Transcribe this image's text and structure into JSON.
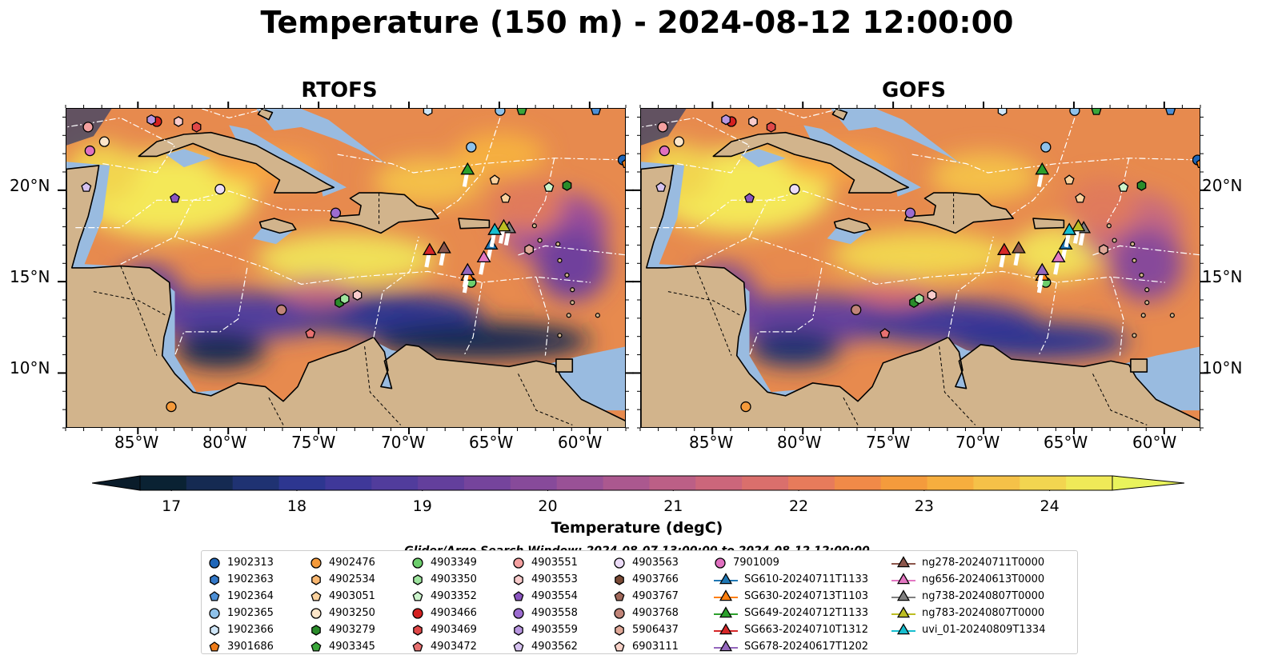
{
  "title": "Temperature (150 m) - 2024-08-12 12:00:00",
  "panels": [
    {
      "title": "RTOFS"
    },
    {
      "title": "GOFS"
    }
  ],
  "axes": {
    "lon_ticks": [
      "85°W",
      "80°W",
      "75°W",
      "70°W",
      "65°W",
      "60°W"
    ],
    "lat_ticks": [
      "20°N",
      "15°N",
      "10°N"
    ],
    "lon_range": [
      -89,
      -58
    ],
    "lat_range": [
      7,
      24.5
    ]
  },
  "colorbar": {
    "label": "Temperature (degC)",
    "ticks": [
      "17",
      "18",
      "19",
      "20",
      "21",
      "22",
      "23",
      "24"
    ],
    "range": [
      16.75,
      24.5
    ],
    "colors": [
      "#0a2233",
      "#152a52",
      "#1f3272",
      "#2d3690",
      "#3f3899",
      "#513c9c",
      "#633f9c",
      "#75449c",
      "#874a9a",
      "#995196",
      "#ab588f",
      "#bc5f86",
      "#cc667b",
      "#da6f6c",
      "#e77b5b",
      "#f08a48",
      "#f49b3c",
      "#f6ae3e",
      "#f5c148",
      "#f2d550",
      "#efe958"
    ],
    "extend_low": "#0a1c2a",
    "extend_high": "#e9f35c"
  },
  "search_window": "Glider/Argo Search Window: 2024-08-07 13:00:00 to 2024-08-12 12:00:00",
  "legend": [
    {
      "label": "1902313",
      "marker": "circle",
      "color": "#1f66b8"
    },
    {
      "label": "1902363",
      "marker": "hexagon",
      "color": "#3378c8"
    },
    {
      "label": "1902364",
      "marker": "pentagon",
      "color": "#4c8fd6"
    },
    {
      "label": "1902365",
      "marker": "circle",
      "color": "#8fc2ea"
    },
    {
      "label": "1902366",
      "marker": "hexagon",
      "color": "#cfe6f8"
    },
    {
      "label": "3901686",
      "marker": "pentagon",
      "color": "#f07d1a"
    },
    {
      "label": "4902476",
      "marker": "circle",
      "color": "#f59a3a"
    },
    {
      "label": "4902534",
      "marker": "hexagon",
      "color": "#f9b770"
    },
    {
      "label": "4903051",
      "marker": "pentagon",
      "color": "#fbd29e"
    },
    {
      "label": "4903250",
      "marker": "circle",
      "color": "#fde6c9"
    },
    {
      "label": "4903279",
      "marker": "hexagon",
      "color": "#2a8c2a"
    },
    {
      "label": "4903345",
      "marker": "pentagon",
      "color": "#3aa63a"
    },
    {
      "label": "4903349",
      "marker": "circle",
      "color": "#6cce6c"
    },
    {
      "label": "4903350",
      "marker": "hexagon",
      "color": "#9ee49e"
    },
    {
      "label": "4903352",
      "marker": "pentagon",
      "color": "#ccf4cc"
    },
    {
      "label": "4903466",
      "marker": "circle",
      "color": "#d42020"
    },
    {
      "label": "4903469",
      "marker": "hexagon",
      "color": "#e04848"
    },
    {
      "label": "4903472",
      "marker": "pentagon",
      "color": "#e87070"
    },
    {
      "label": "4903551",
      "marker": "circle",
      "color": "#f4a0a0"
    },
    {
      "label": "4903553",
      "marker": "hexagon",
      "color": "#f9cccc"
    },
    {
      "label": "4903554",
      "marker": "pentagon",
      "color": "#8a55c0"
    },
    {
      "label": "4903558",
      "marker": "circle",
      "color": "#9c6cd0"
    },
    {
      "label": "4903559",
      "marker": "hexagon",
      "color": "#b896e0"
    },
    {
      "label": "4903562",
      "marker": "pentagon",
      "color": "#d6c2f0"
    },
    {
      "label": "4903563",
      "marker": "circle",
      "color": "#ecdcf8"
    },
    {
      "label": "4903766",
      "marker": "hexagon",
      "color": "#7a4a36"
    },
    {
      "label": "4903767",
      "marker": "pentagon",
      "color": "#a0685a"
    },
    {
      "label": "4903768",
      "marker": "circle",
      "color": "#c08478"
    },
    {
      "label": "5906437",
      "marker": "hexagon",
      "color": "#e0a898"
    },
    {
      "label": "6903111",
      "marker": "pentagon",
      "color": "#f8d2c8"
    },
    {
      "label": "7901009",
      "marker": "circle",
      "color": "#e070c0"
    },
    {
      "label": "SG610-20240711T1133",
      "marker": "triangle",
      "color": "#1f77b4"
    },
    {
      "label": "SG630-20240713T1103",
      "marker": "triangle",
      "color": "#ff7f0e"
    },
    {
      "label": "SG649-20240712T1133",
      "marker": "triangle",
      "color": "#2ca02c"
    },
    {
      "label": "SG663-20240710T1312",
      "marker": "triangle",
      "color": "#d62728"
    },
    {
      "label": "SG678-20240617T1202",
      "marker": "triangle",
      "color": "#9467bd"
    },
    {
      "label": "ng278-20240711T0000",
      "marker": "triangle",
      "color": "#8c564b"
    },
    {
      "label": "ng656-20240613T0000",
      "marker": "triangle",
      "color": "#e377c2"
    },
    {
      "label": "ng738-20240807T0000",
      "marker": "triangle",
      "color": "#7f7f7f"
    },
    {
      "label": "ng783-20240807T0000",
      "marker": "triangle",
      "color": "#bcbd22"
    },
    {
      "label": "uvi_01-20240809T1334",
      "marker": "triangle",
      "color": "#17becf"
    }
  ],
  "map_colors": {
    "land": "#d2b48c",
    "shelf": "#99bbe0",
    "deep_ocean": "#0a2233"
  },
  "gliders": [
    {
      "label": "SG610-20240711T1133",
      "lon": -65.5,
      "lat": 17.1
    },
    {
      "label": "SG630-20240713T1103",
      "lon": -66.8,
      "lat": 15.4
    },
    {
      "label": "SG649-20240712T1133",
      "lon": -66.8,
      "lat": 21.2
    },
    {
      "label": "SG663-20240710T1312",
      "lon": -68.9,
      "lat": 16.8
    },
    {
      "label": "SG678-20240617T1202",
      "lon": -66.8,
      "lat": 15.7
    },
    {
      "label": "ng278-20240711T0000",
      "lon": -68.1,
      "lat": 16.9
    },
    {
      "label": "ng656-20240613T0000",
      "lon": -65.9,
      "lat": 16.4
    },
    {
      "label": "ng738-20240807T0000",
      "lon": -64.5,
      "lat": 18.0
    },
    {
      "label": "ng783-20240807T0000",
      "lon": -64.8,
      "lat": 18.1
    },
    {
      "label": "uvi_01-20240809T1334",
      "lon": -65.3,
      "lat": 17.9
    }
  ],
  "floats": [
    {
      "label": "1902313",
      "lon": -58.2,
      "lat": 21.7
    },
    {
      "label": "1902364",
      "lon": -59.7,
      "lat": 24.4
    },
    {
      "label": "1902365",
      "lon": -66.6,
      "lat": 22.4
    },
    {
      "label": "1902365",
      "lon": -65.0,
      "lat": 24.4
    },
    {
      "label": "1902366",
      "lon": -69.0,
      "lat": 24.4
    },
    {
      "label": "3901686",
      "lon": -58.0,
      "lat": 21.5
    },
    {
      "label": "4902476",
      "lon": -83.2,
      "lat": 8.2
    },
    {
      "label": "4903051",
      "lon": -65.3,
      "lat": 20.6
    },
    {
      "label": "4903051",
      "lon": -64.7,
      "lat": 19.6
    },
    {
      "label": "4903250",
      "lon": -86.9,
      "lat": 22.7
    },
    {
      "label": "4903279",
      "lon": -61.3,
      "lat": 20.3
    },
    {
      "label": "4903279",
      "lon": -73.9,
      "lat": 13.9
    },
    {
      "label": "4903345",
      "lon": -63.8,
      "lat": 24.4
    },
    {
      "label": "4903349",
      "lon": -66.6,
      "lat": 15.0
    },
    {
      "label": "4903350",
      "lon": -73.6,
      "lat": 14.1
    },
    {
      "label": "4903352",
      "lon": -62.3,
      "lat": 20.2
    },
    {
      "label": "4903466",
      "lon": -84.0,
      "lat": 23.8
    },
    {
      "label": "4903469",
      "lon": -81.8,
      "lat": 23.5
    },
    {
      "label": "4903472",
      "lon": -75.5,
      "lat": 12.2
    },
    {
      "label": "4903551",
      "lon": -87.8,
      "lat": 23.5
    },
    {
      "label": "4903553",
      "lon": -82.8,
      "lat": 23.8
    },
    {
      "label": "4903553",
      "lon": -72.9,
      "lat": 14.3
    },
    {
      "label": "4903554",
      "lon": -83.0,
      "lat": 19.6
    },
    {
      "label": "4903558",
      "lon": -74.1,
      "lat": 18.8
    },
    {
      "label": "4903559",
      "lon": -84.3,
      "lat": 23.9
    },
    {
      "label": "4903562",
      "lon": -87.9,
      "lat": 20.2
    },
    {
      "label": "4903563",
      "lon": -80.5,
      "lat": 20.1
    },
    {
      "label": "4903768",
      "lon": -77.1,
      "lat": 13.5
    },
    {
      "label": "5906437",
      "lon": -63.4,
      "lat": 16.8
    },
    {
      "label": "7901009",
      "lon": -87.7,
      "lat": 22.2
    }
  ]
}
